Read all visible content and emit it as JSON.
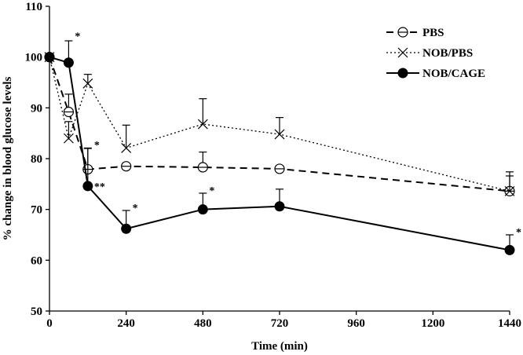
{
  "chart_data": {
    "type": "line",
    "title": "",
    "xlabel": "Time (min)",
    "ylabel": "% change in blood glucose levels",
    "xlim": [
      0,
      1440
    ],
    "ylim": [
      50,
      110
    ],
    "xticks": [
      0,
      240,
      480,
      720,
      960,
      1200,
      1440
    ],
    "yticks": [
      50,
      60,
      70,
      80,
      90,
      100,
      110
    ],
    "legend_position": "top-right",
    "x": [
      0,
      60,
      120,
      240,
      480,
      720,
      1440
    ],
    "series": [
      {
        "name": "PBS",
        "style": "dashed",
        "marker": "circle-minus",
        "values": [
          100,
          89.2,
          77.9,
          78.5,
          78.3,
          78.0,
          73.6
        ],
        "errors": [
          0,
          3.5,
          4.2,
          0,
          3.0,
          0,
          3.8
        ]
      },
      {
        "name": "NOB/PBS",
        "style": "dotted",
        "marker": "x",
        "values": [
          100,
          84.0,
          94.8,
          82.1,
          86.8,
          84.8,
          73.6
        ],
        "errors": [
          0,
          3.3,
          1.8,
          4.5,
          5.0,
          3.3,
          3.0
        ]
      },
      {
        "name": "NOB/CAGE",
        "style": "solid",
        "marker": "filled-circle",
        "values": [
          100,
          98.9,
          74.6,
          66.2,
          70.0,
          70.6,
          62.0
        ],
        "errors": [
          0,
          4.3,
          7.4,
          3.6,
          3.2,
          3.4,
          3.0
        ]
      }
    ],
    "annotations": [
      {
        "x": 60,
        "y": 104.2,
        "text": "*"
      },
      {
        "x": 120,
        "y": 82.8,
        "text": "*"
      },
      {
        "x": 120,
        "y": 74.6,
        "text": "**"
      },
      {
        "x": 240,
        "y": 70.4,
        "text": "*"
      },
      {
        "x": 480,
        "y": 73.8,
        "text": "*"
      },
      {
        "x": 1440,
        "y": 65.6,
        "text": "*"
      }
    ]
  }
}
